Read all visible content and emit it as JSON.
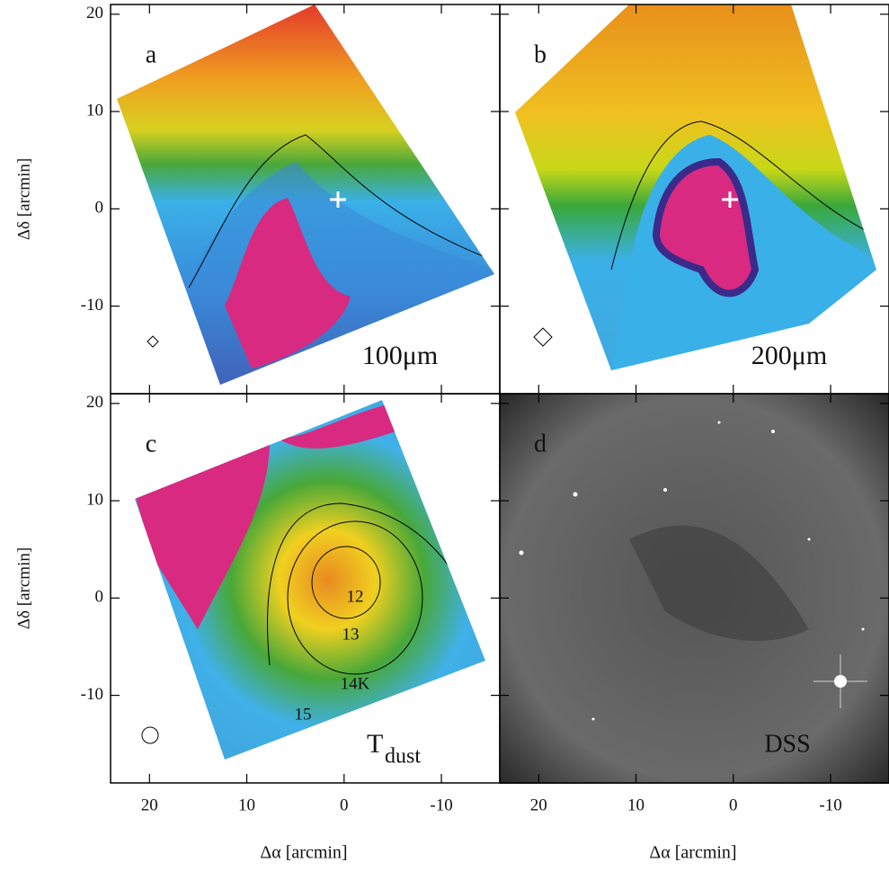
{
  "figure": {
    "xlim": [
      24,
      -16
    ],
    "ylim": [
      -19,
      21
    ],
    "xticks": [
      20,
      10,
      0,
      -10
    ],
    "yticks": [
      20,
      10,
      0,
      -10
    ],
    "xlabel": "Δα [arcmin]",
    "ylabel": "Δδ [arcmin]",
    "panels": [
      {
        "label": "a",
        "caption": "100μm"
      },
      {
        "label": "b",
        "caption": "200μm"
      },
      {
        "label": "c",
        "caption_main": "T",
        "caption_sub": "dust",
        "contour_labels": [
          "12",
          "13",
          "14K",
          "15"
        ]
      },
      {
        "label": "d",
        "caption": "DSS"
      }
    ]
  }
}
